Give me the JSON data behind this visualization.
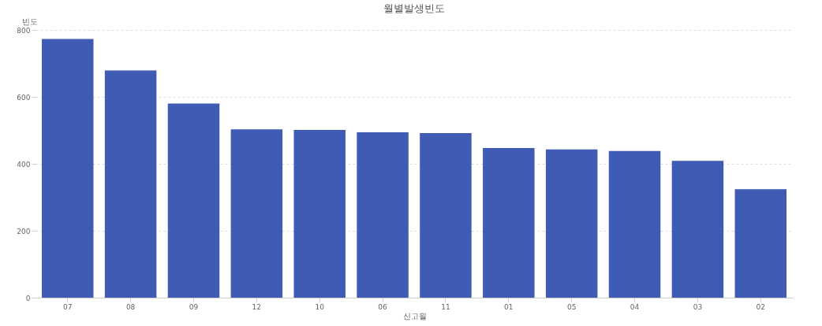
{
  "chart_data": {
    "type": "bar",
    "title": "월별발생빈도",
    "xlabel": "신고월",
    "ylabel": "빈도",
    "categories": [
      "07",
      "08",
      "09",
      "12",
      "10",
      "06",
      "11",
      "01",
      "05",
      "04",
      "03",
      "02"
    ],
    "values": [
      773,
      679,
      580,
      503,
      501,
      494,
      492,
      447,
      443,
      438,
      409,
      324
    ],
    "color": "#3f5bb3",
    "ylim": [
      0,
      800
    ],
    "yticks": [
      0,
      200,
      400,
      600,
      800
    ],
    "grid": "y"
  }
}
